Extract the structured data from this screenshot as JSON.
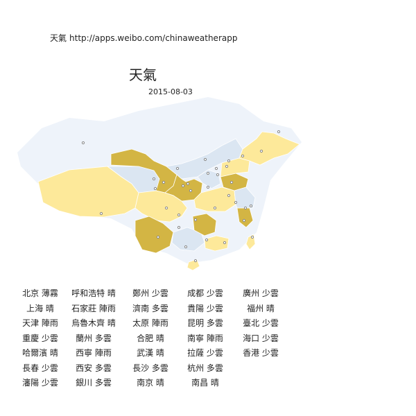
{
  "header": {
    "app_name": "天氣",
    "url": "http://apps.weibo.com/chinaweatherapp",
    "title": "天氣",
    "date": "2015-08-03"
  },
  "colors": {
    "background_land": "#e8eef6",
    "faint_land": "#eef3fa",
    "sunny": "#fde99a",
    "cloudy": "#d3b544",
    "rain": "#dbe6f2",
    "marker": "#888888"
  },
  "cities": [
    [
      "北京 薄霧",
      "呼和浩特 晴",
      "鄭州 少雲",
      "成都 少雲",
      "廣州 少雲"
    ],
    [
      "上海 晴",
      "石家莊 陣雨",
      "濟南 多雲",
      "貴陽 少雲",
      "福州 晴"
    ],
    [
      "天津 陣雨",
      "烏魯木齊 晴",
      "太原 陣雨",
      "昆明 多雲",
      "臺北 少雲"
    ],
    [
      "重慶 少雲",
      "蘭州 多雲",
      "合肥 晴",
      "南寧 陣雨",
      "海口 少雲"
    ],
    [
      "哈爾濱 晴",
      "西寧 陣雨",
      "武漢 晴",
      "拉薩 少雲",
      "香港 少雲"
    ],
    [
      "長春 少雲",
      "西安 多雲",
      "長沙 多雲",
      "杭州 多雲",
      ""
    ],
    [
      "瀋陽 少雲",
      "銀川 多雲",
      "南京 晴",
      "南昌 晴",
      ""
    ]
  ]
}
